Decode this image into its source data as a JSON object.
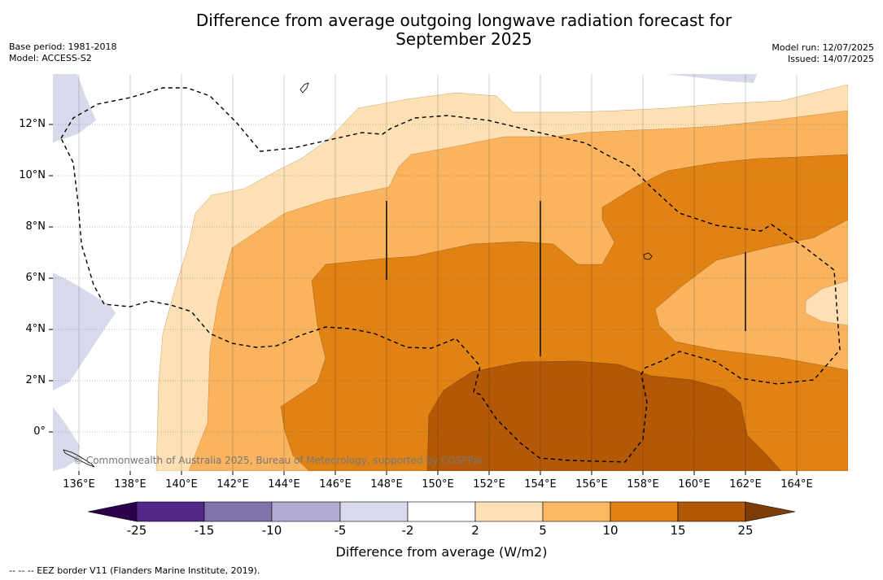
{
  "title": {
    "line1": "Difference from average outgoing longwave radiation forecast for",
    "line2": "September 2025"
  },
  "meta_left": {
    "base_period": "Base period: 1981-2018",
    "model": "Model: ACCESS-S2"
  },
  "meta_right": {
    "model_run": "Model run: 12/07/2025",
    "issued": "Issued: 14/07/2025"
  },
  "map": {
    "lat_labels": [
      "12°N",
      "10°N",
      "8°N",
      "6°N",
      "4°N",
      "2°N",
      "0°"
    ],
    "lon_labels": [
      "136°E",
      "138°E",
      "140°E",
      "142°E",
      "144°E",
      "146°E",
      "148°E",
      "150°E",
      "152°E",
      "154°E",
      "156°E",
      "158°E",
      "160°E",
      "162°E",
      "164°E"
    ],
    "copyright": "© Commonwealth of Australia 2025, Bureau of Meteorology, supported by COSPPac",
    "fill_colors": {
      "2_to_5": "#fde0b3",
      "5_to_10": "#fab45f",
      "10_to_15": "#e08214",
      "15_to_25": "#b35806",
      "m5_to_m2": "#d8daeb"
    }
  },
  "colorbar": {
    "tick_labels": [
      "-25",
      "-15",
      "-10",
      "-5",
      "-2",
      "2",
      "5",
      "10",
      "15",
      "25"
    ],
    "colors": [
      "#2d004b",
      "#542788",
      "#8073ac",
      "#b2abd2",
      "#d8daeb",
      "#ffffff",
      "#fee0b6",
      "#fdb863",
      "#e08214",
      "#b35806",
      "#7f3b08"
    ],
    "label": "Difference from average (W/m2)"
  },
  "footer": "--  --  -- EEZ border V11 (Flanders Marine Institute, 2019)."
}
